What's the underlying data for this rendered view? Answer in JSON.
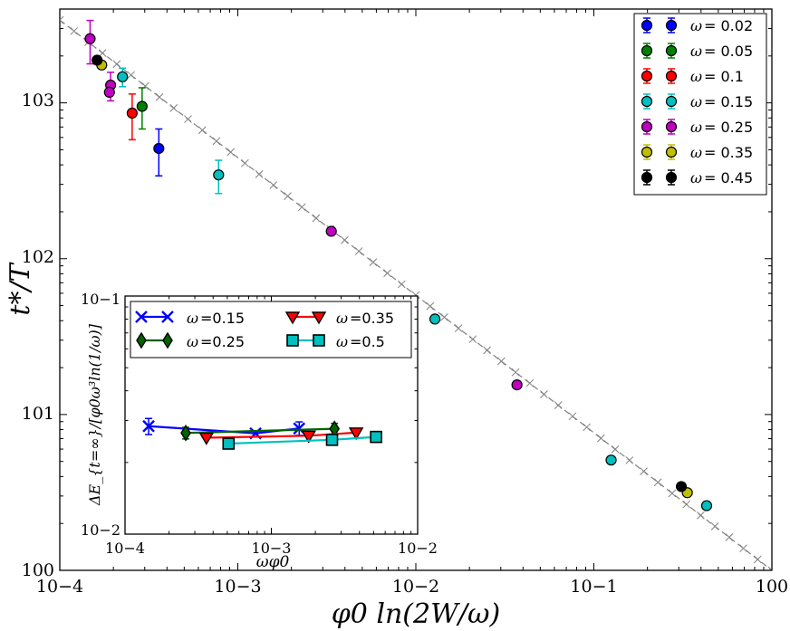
{
  "chart_data": [
    {
      "type": "scatter",
      "xscale": "log",
      "yscale": "log",
      "xlim": [
        0.0001,
        1
      ],
      "ylim": [
        1,
        4000
      ],
      "xlabel": "φ0 ln(2W/ω)",
      "ylabel": "t*/T",
      "xtick_labels": [
        "10−4",
        "10−3",
        "10−2",
        "10−1",
        "100"
      ],
      "ytick_labels": [
        "100",
        "101",
        "102",
        "103"
      ],
      "legend_location": "top-right",
      "reference_line": {
        "style": "dashed-grey-with-x-markers",
        "x": [
          0.0001,
          1
        ],
        "y": [
          3400,
          1.0
        ]
      },
      "series": [
        {
          "name": "ω = 0.02",
          "label_symbol": "ω",
          "label_value": "= 0.02",
          "color": "#0000ff",
          "points": [
            {
              "x": 0.00036,
              "y": 510,
              "ylo": 340,
              "yhi": 680
            }
          ]
        },
        {
          "name": "ω = 0.05",
          "label_symbol": "ω",
          "label_value": "= 0.05",
          "color": "#008000",
          "points": [
            {
              "x": 0.00029,
              "y": 950,
              "ylo": 680,
              "yhi": 1250
            }
          ]
        },
        {
          "name": "ω = 0.1",
          "label_symbol": "ω",
          "label_value": "= 0.1",
          "color": "#ff0000",
          "points": [
            {
              "x": 0.000255,
              "y": 860,
              "ylo": 580,
              "yhi": 1140
            }
          ]
        },
        {
          "name": "ω = 0.15",
          "label_symbol": "ω",
          "label_value": "= 0.15",
          "color": "#00bfbf",
          "points": [
            {
              "x": 0.000225,
              "y": 1470,
              "ylo": 1270,
              "yhi": 1670
            },
            {
              "x": 0.00078,
              "y": 345,
              "ylo": 262,
              "yhi": 428
            },
            {
              "x": 0.0128,
              "y": 41
            },
            {
              "x": 0.125,
              "y": 5.1
            },
            {
              "x": 0.43,
              "y": 2.6
            }
          ]
        },
        {
          "name": "ω = 0.25",
          "label_symbol": "ω",
          "label_value": "= 0.25",
          "color": "#bf00bf",
          "points": [
            {
              "x": 0.000148,
              "y": 2580,
              "ylo": 1780,
              "yhi": 3380
            },
            {
              "x": 0.000193,
              "y": 1300,
              "ylo": 1030,
              "yhi": 1570
            },
            {
              "x": 0.00019,
              "y": 1170
            },
            {
              "x": 0.00335,
              "y": 150
            },
            {
              "x": 0.037,
              "y": 15.5
            }
          ]
        },
        {
          "name": "ω = 0.35",
          "label_symbol": "ω",
          "label_value": "= 0.35",
          "color": "#bfbf00",
          "points": [
            {
              "x": 0.000172,
              "y": 1750
            },
            {
              "x": 0.335,
              "y": 3.15
            }
          ]
        },
        {
          "name": "ω = 0.45",
          "label_symbol": "ω",
          "label_value": "= 0.45",
          "color": "#000000",
          "points": [
            {
              "x": 0.000162,
              "y": 1880
            },
            {
              "x": 0.31,
              "y": 3.45
            }
          ]
        }
      ]
    },
    {
      "type": "line",
      "inset": true,
      "xscale": "log",
      "yscale": "log",
      "xlim": [
        0.0001,
        0.01
      ],
      "ylim": [
        0.01,
        0.1
      ],
      "xlabel": "ωφ0",
      "ylabel": "ΔE_{t=∞}/[φ0ω³ln(1/ω)]",
      "xtick_labels": [
        "10−4",
        "10−3",
        "10−2"
      ],
      "ytick_labels": [
        "10−2",
        "10−1"
      ],
      "legend_location": "top",
      "series": [
        {
          "name": "ω =0.15",
          "label_symbol": "ω",
          "label_value": "=0.15",
          "color": "#0000ff",
          "marker": "x",
          "points": [
            {
              "x": 0.000145,
              "y": 0.0284,
              "err": 0.0022
            },
            {
              "x": 0.00078,
              "y": 0.0265
            },
            {
              "x": 0.00155,
              "y": 0.0278,
              "err": 0.0018
            }
          ]
        },
        {
          "name": "ω =0.25",
          "label_symbol": "ω",
          "label_value": "=0.25",
          "color": "#006400",
          "marker": "diamond",
          "points": [
            {
              "x": 0.00026,
              "y": 0.0266,
              "err": 0.0015
            },
            {
              "x": 0.0027,
              "y": 0.0277,
              "err": 0.0015
            }
          ]
        },
        {
          "name": "ω =0.35",
          "label_symbol": "ω",
          "label_value": "=0.35",
          "color": "#ff0000",
          "marker": "triangle-down",
          "points": [
            {
              "x": 0.00036,
              "y": 0.0254
            },
            {
              "x": 0.0018,
              "y": 0.0259
            },
            {
              "x": 0.0038,
              "y": 0.0267
            }
          ]
        },
        {
          "name": "ω =0.5",
          "label_symbol": "ω",
          "label_value": "=0.5",
          "color": "#00bfbf",
          "marker": "square",
          "points": [
            {
              "x": 0.00051,
              "y": 0.024
            },
            {
              "x": 0.0026,
              "y": 0.0249
            },
            {
              "x": 0.0052,
              "y": 0.0256
            }
          ]
        }
      ]
    }
  ]
}
